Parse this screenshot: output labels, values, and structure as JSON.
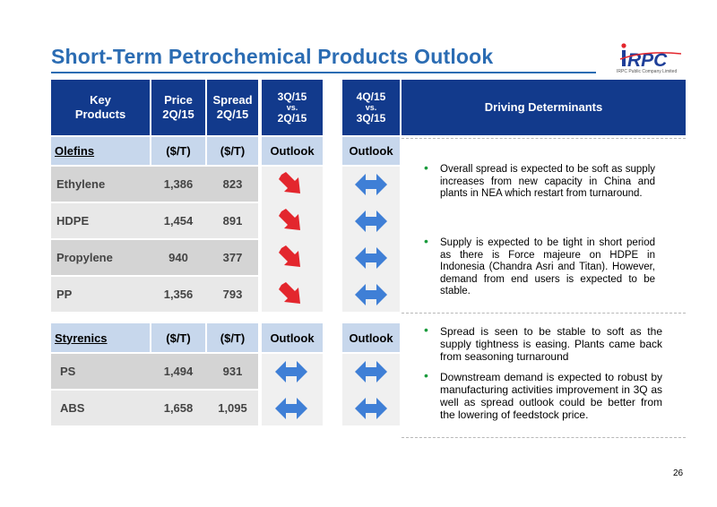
{
  "title": "Short-Term Petrochemical Products Outlook",
  "logo": {
    "text": "IRPC",
    "subtitle": "IRPC Public Company Limited",
    "colors": {
      "blue": "#1f3f99",
      "red": "#e3262d"
    }
  },
  "headers": {
    "key_products": "Key Products",
    "price": "Price 2Q/15",
    "spread": "Spread 2Q/15",
    "col_3q_top": "3Q/15",
    "col_3q_vs": "vs.",
    "col_3q_bottom": "2Q/15",
    "col_4q_top": "4Q/15",
    "col_4q_vs": "vs.",
    "col_4q_bottom": "3Q/15",
    "driving": "Driving Determinants"
  },
  "sections": [
    {
      "name": "Olefins",
      "unit_price": "($/T)",
      "unit_spread": "($/T)",
      "outlook_3q": "Outlook",
      "outlook_4q": "Outlook",
      "rows": [
        {
          "name": "Ethylene",
          "price": "1,386",
          "spread": "823",
          "outlook_3q_icon": "red-down-arrow-icon",
          "outlook_4q_icon": "blue-double-arrow-icon"
        },
        {
          "name": "HDPE",
          "price": "1,454",
          "spread": "891",
          "outlook_3q_icon": "red-down-arrow-icon",
          "outlook_4q_icon": "blue-double-arrow-icon"
        },
        {
          "name": "Propylene",
          "price": "940",
          "spread": "377",
          "outlook_3q_icon": "red-down-arrow-icon",
          "outlook_4q_icon": "blue-double-arrow-icon"
        },
        {
          "name": "PP",
          "price": "1,356",
          "spread": "793",
          "outlook_3q_icon": "red-down-arrow-icon",
          "outlook_4q_icon": "blue-double-arrow-icon"
        }
      ],
      "bullets": [
        "Overall spread is expected to be soft as supply increases from new capacity in China and plants in NEA which restart from turnaround.",
        "Supply is expected to be tight in short period as there is Force majeure on HDPE in Indonesia (Chandra Asri and Titan). However, demand from end users is expected to be stable."
      ]
    },
    {
      "name": "Styrenics",
      "unit_price": "($/T)",
      "unit_spread": "($/T)",
      "outlook_3q": "Outlook",
      "outlook_4q": "Outlook",
      "rows": [
        {
          "name": "PS",
          "price": "1,494",
          "spread": "931",
          "outlook_3q_icon": "blue-double-arrow-icon",
          "outlook_4q_icon": "blue-double-arrow-icon"
        },
        {
          "name": "ABS",
          "price": "1,658",
          "spread": "1,095",
          "outlook_3q_icon": "blue-double-arrow-icon",
          "outlook_4q_icon": "blue-double-arrow-icon"
        }
      ],
      "bullets": [
        "Spread is seen to be stable to soft as the supply tightness is easing. Plants came back from seasoning turnaround",
        "Downstream demand is expected to robust by manufacturing activities improvement in 3Q as well as spread outlook could be better from the lowering of feedstock price."
      ]
    }
  ],
  "page_number": "26",
  "colors": {
    "header_bg": "#123a8c",
    "section_bg": "#c7d7ec",
    "row_dark": "#d4d4d4",
    "row_light": "#e8e8e8",
    "title": "#2b6cb3",
    "down_arrow": "#e3262d",
    "double_arrow": "#3f7fd6",
    "bullet": "#1a9b3c"
  }
}
